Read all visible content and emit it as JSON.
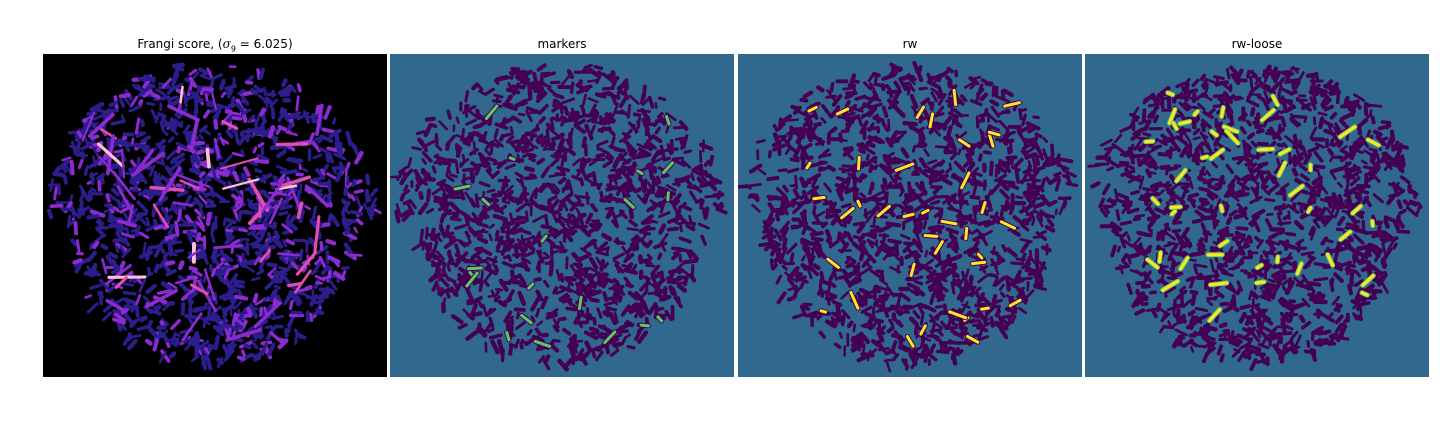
{
  "panels": [
    {
      "title_prefix": "Frangi score, (",
      "title_var": "σ",
      "title_sub": "9",
      "title_suffix": " = 6.025)",
      "colormap": "magma"
    },
    {
      "title": "markers",
      "colormap": "viridis"
    },
    {
      "title": "rw",
      "colormap": "viridis"
    },
    {
      "title": "rw-loose",
      "colormap": "viridis"
    }
  ],
  "colors": {
    "black": "#000000",
    "background_teal": "#31688e",
    "dark_purple": "#440154",
    "yellow": "#fde725",
    "green": "#5ec962",
    "magma_blue": "#2c1d8c",
    "magma_purple": "#8a2ad1",
    "magma_pink": "#e04fb0",
    "magma_light": "#fcc3d6"
  }
}
